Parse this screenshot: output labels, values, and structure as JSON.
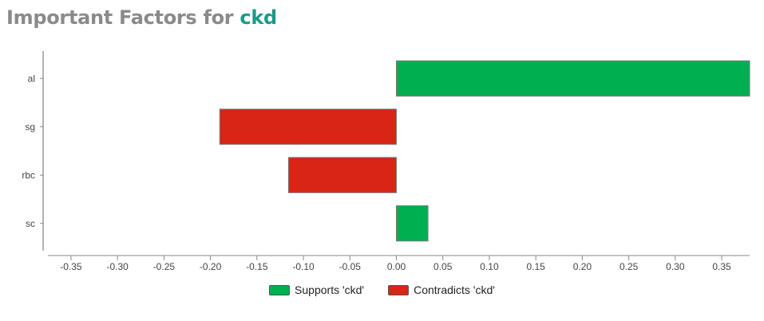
{
  "title": {
    "prefix": "Important Factors for ",
    "target": "ckd"
  },
  "colors": {
    "supports": "#00b050",
    "contradicts": "#d92516",
    "title_gray": "#8a8a8a",
    "title_accent": "#1a9a8a"
  },
  "legend": {
    "supports_label": "Supports 'ckd'",
    "contradicts_label": "Contradicts 'ckd'"
  },
  "chart_data": {
    "type": "bar",
    "orientation": "horizontal",
    "categories": [
      "al",
      "sg",
      "rbc",
      "sc"
    ],
    "values": [
      0.38,
      -0.19,
      -0.116,
      0.034
    ],
    "xlim": [
      -0.38,
      0.38
    ],
    "xticks": [
      -0.35,
      -0.3,
      -0.25,
      -0.2,
      -0.15,
      -0.1,
      -0.05,
      0.0,
      0.05,
      0.1,
      0.15,
      0.2,
      0.25,
      0.3,
      0.35
    ],
    "xtick_labels": [
      "-0.35",
      "-0.30",
      "-0.25",
      "-0.20",
      "-0.15",
      "-0.10",
      "-0.05",
      "0.00",
      "0.05",
      "0.10",
      "0.15",
      "0.20",
      "0.25",
      "0.30",
      "0.35"
    ],
    "grid": false,
    "legend_position": "bottom-center"
  }
}
